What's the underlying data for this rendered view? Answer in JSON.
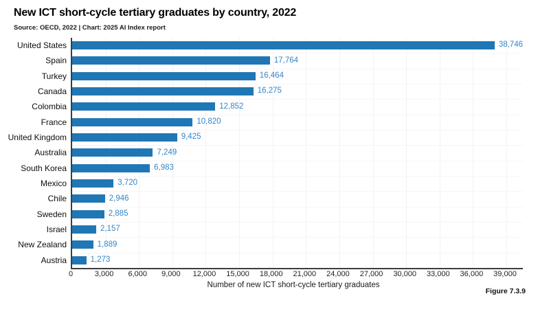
{
  "header": {
    "title": "New ICT short-cycle tertiary graduates by country, 2022",
    "subtitle": "Source: OECD, 2022 | Chart: 2025 AI Index report"
  },
  "footer": {
    "figure_label": "Figure 7.3.9"
  },
  "chart_data": {
    "type": "bar",
    "orientation": "horizontal",
    "title": "New ICT short-cycle tertiary graduates by country, 2022",
    "categories": [
      "United States",
      "Spain",
      "Turkey",
      "Canada",
      "Colombia",
      "France",
      "United Kingdom",
      "Australia",
      "South Korea",
      "Mexico",
      "Chile",
      "Sweden",
      "Israel",
      "New Zealand",
      "Austria"
    ],
    "values": [
      38746,
      17764,
      16464,
      16275,
      12852,
      10820,
      9425,
      7249,
      6983,
      3720,
      2946,
      2885,
      2157,
      1889,
      1273
    ],
    "value_labels": [
      "38,746",
      "17,764",
      "16,464",
      "16,275",
      "12,852",
      "10,820",
      "9,425",
      "7,249",
      "6,983",
      "3,720",
      "2,946",
      "2,885",
      "2,157",
      "1,889",
      "1,273"
    ],
    "xlabel": "Number of new ICT short-cycle tertiary graduates",
    "ylabel": "",
    "xlim": [
      0,
      39000
    ],
    "xticks": [
      0,
      3000,
      6000,
      9000,
      12000,
      15000,
      18000,
      21000,
      24000,
      27000,
      30000,
      33000,
      36000,
      39000
    ],
    "xtick_labels": [
      "0",
      "3,000",
      "6,000",
      "9,000",
      "12,000",
      "15,000",
      "18,000",
      "21,000",
      "24,000",
      "27,000",
      "30,000",
      "33,000",
      "36,000",
      "39,000"
    ],
    "grid": "vertical-light",
    "legend": "none",
    "bar_color": "#2077B5",
    "value_label_color": "#3585C7",
    "axis_color": "#3d3d3d"
  }
}
